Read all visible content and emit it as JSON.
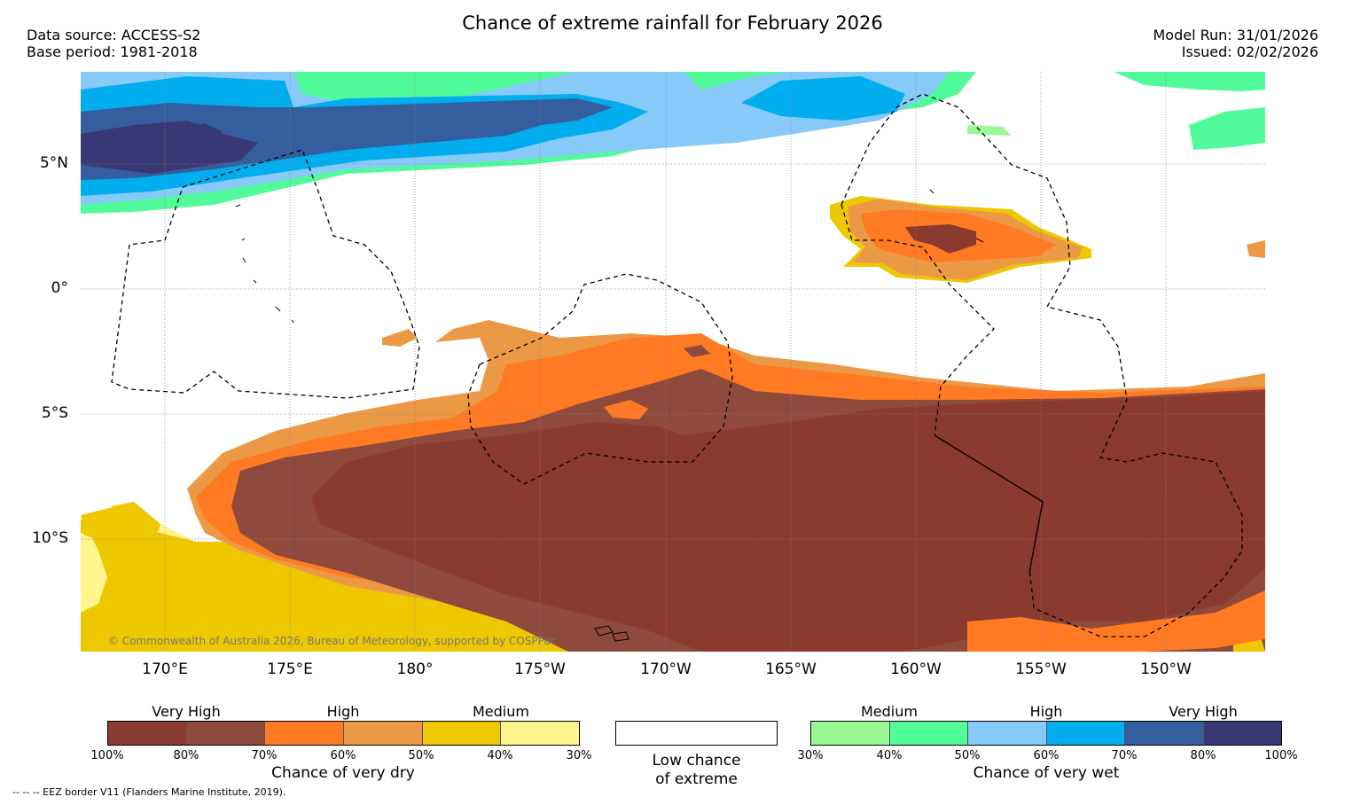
{
  "header": {
    "title": "Chance of extreme rainfall for February 2026",
    "data_source": "Data source: ACCESS-S2",
    "base_period": "Base period: 1981-2018",
    "model_run": "Model Run: 31/01/2026",
    "issued": "Issued: 02/02/2026"
  },
  "map": {
    "copyright": "© Commonwealth of Australia 2026, Bureau of Meteorology, supported by COSPPac",
    "lon_ticks": [
      "170°E",
      "175°E",
      "180°",
      "175°W",
      "170°W",
      "165°W",
      "160°W",
      "155°W",
      "150°W"
    ],
    "lat_ticks": [
      "5°N",
      "0°",
      "5°S",
      "10°S"
    ],
    "colors": {
      "dry_100_80": "#8b3a2f",
      "dry_80_70": "#8e4a3c",
      "dry_70_60": "#ff7a22",
      "dry_60_50": "#ec9946",
      "dry_50_40": "#edc800",
      "dry_40_30": "#fff58c",
      "wet_30_40": "#99f994",
      "wet_40_50": "#52fb9a",
      "wet_50_60": "#87c9f9",
      "wet_60_70": "#00aeef",
      "wet_70_80": "#345e9e",
      "wet_80_100": "#3a3775"
    }
  },
  "legend": {
    "dry": {
      "categories": [
        "Very High",
        "High",
        "Medium"
      ],
      "ticks": [
        "100%",
        "80%",
        "70%",
        "60%",
        "50%",
        "40%",
        "30%"
      ],
      "title": "Chance of very dry"
    },
    "neutral": {
      "label_line1": "Low chance",
      "label_line2": "of extreme"
    },
    "wet": {
      "categories": [
        "Medium",
        "High",
        "Very High"
      ],
      "ticks": [
        "30%",
        "40%",
        "50%",
        "60%",
        "70%",
        "80%",
        "100%"
      ],
      "title": "Chance of very wet"
    },
    "footnote": "--  --  -- EEZ border V11 (Flanders Marine Institute, 2019)."
  }
}
